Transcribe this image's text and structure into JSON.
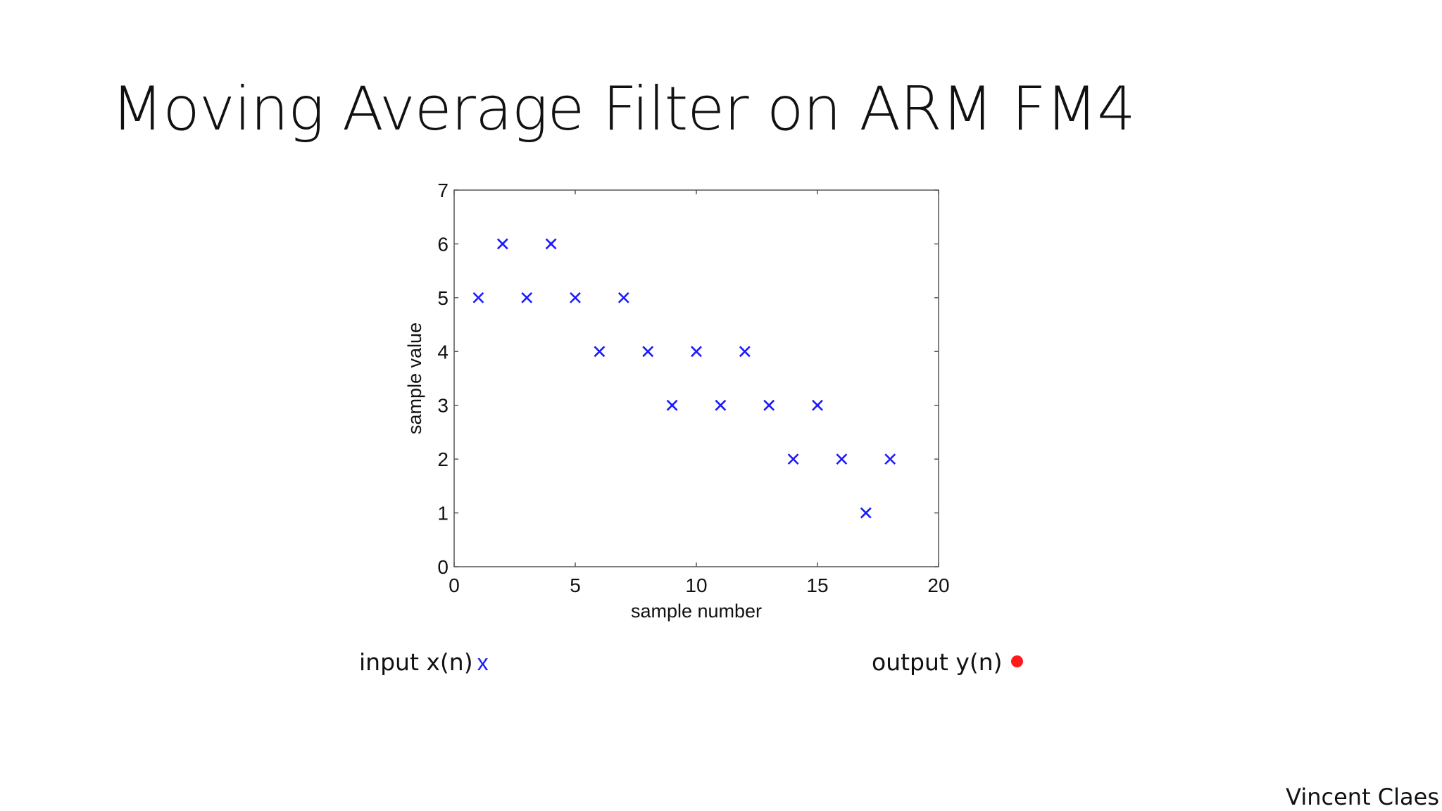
{
  "slide": {
    "title": "Moving Average Filter on ARM FM4",
    "author": "Vincent Claes"
  },
  "legend": {
    "input_label": "input x(n)",
    "input_marker": "x",
    "output_label": "output y(n)",
    "output_color": "#ff1a1a"
  },
  "chart_data": {
    "type": "scatter",
    "title": "",
    "xlabel": "sample number",
    "ylabel": "sample value",
    "xlim": [
      0,
      20
    ],
    "ylim": [
      0,
      7
    ],
    "xticks": [
      0,
      5,
      10,
      15,
      20
    ],
    "yticks": [
      0,
      1,
      2,
      3,
      4,
      5,
      6,
      7
    ],
    "grid": false,
    "series": [
      {
        "marker": "x",
        "color": "#1a1aff",
        "x": [
          1,
          2,
          3,
          4,
          5,
          6,
          7,
          8,
          9,
          10,
          11,
          12,
          13,
          14,
          15,
          16,
          17,
          18
        ],
        "y": [
          5,
          6,
          5,
          6,
          5,
          4,
          5,
          4,
          3,
          4,
          3,
          4,
          3,
          2,
          3,
          2,
          1,
          2
        ]
      }
    ]
  }
}
